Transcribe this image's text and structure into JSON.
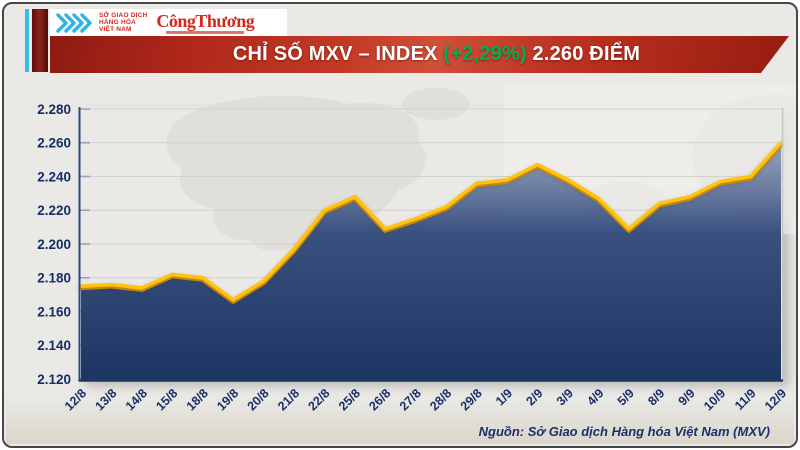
{
  "header": {
    "logo": {
      "org_lines": [
        "SỞ GIAO DỊCH",
        "HÀNG HÓA",
        "VIỆT NAM"
      ],
      "org_color": "#d3281e",
      "brand": "CôngThương",
      "brand_color": "#d3281e",
      "chevron_color": "#2fb3e3",
      "stripe_cyan": "#35bde8",
      "stripe_maroon": "#7c1812"
    },
    "banner": {
      "title_main": "CHỈ SỐ MXV – INDEX",
      "title_change": "(+2,29%)",
      "title_value": "2.260 ĐIỂM",
      "change_color": "#00b050",
      "banner_red": "#c23a26"
    }
  },
  "chart_data": {
    "type": "area",
    "title": "CHỈ SỐ MXV – INDEX (+2,29%) 2.260 ĐIỂM",
    "x": [
      "12/8",
      "13/8",
      "14/8",
      "15/8",
      "18/8",
      "19/8",
      "20/8",
      "21/8",
      "22/8",
      "25/8",
      "26/8",
      "27/8",
      "28/8",
      "29/8",
      "1/9",
      "2/9",
      "3/9",
      "4/9",
      "5/9",
      "8/9",
      "9/9",
      "10/9",
      "11/9",
      "12/9"
    ],
    "values": [
      2175,
      2176,
      2174,
      2182,
      2180,
      2167,
      2178,
      2197,
      2220,
      2228,
      2209,
      2215,
      2222,
      2236,
      2238,
      2247,
      2238,
      2227,
      2209,
      2224,
      2228,
      2237,
      2240,
      2260
    ],
    "last_value_label": "2.260",
    "ylim": [
      2120,
      2280
    ],
    "y_ticks": [
      "2.280",
      "2.260",
      "2.240",
      "2.220",
      "2.200",
      "2.180",
      "2.160",
      "2.140",
      "2.120"
    ],
    "grid": true,
    "legend": "none",
    "line_color": "#ffc20e",
    "line_edge_color": "#e59a05",
    "fill_stops": [
      "#8a99b7",
      "#3a5180",
      "#1d3562"
    ],
    "grid_color": "#d2d1ce",
    "axis_color": "#1e3662",
    "ylabel_color": "#152d66",
    "xlabel_color": "#1c2f6b"
  },
  "footer": {
    "source": "Nguồn: Sở Giao dịch Hàng hóa Việt Nam (MXV)"
  }
}
